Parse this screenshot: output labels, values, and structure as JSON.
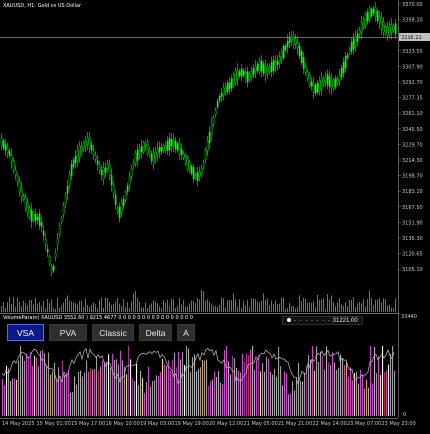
{
  "chart": {
    "title": "XAUUSD, H1:  Gold vs US Dollar",
    "price_tag": "3338.23",
    "right_axis_labels": [
      "3370.00",
      "3358.20",
      "3341.50",
      "3323.55",
      "3307.90",
      "3292.70",
      "3277.35",
      "3261.10",
      "3245.50",
      "3229.70",
      "3214.30",
      "3198.70",
      "3183.10",
      "3167.50",
      "3151.90",
      "3136.30",
      "3120.65",
      "3105.10"
    ],
    "bottom_axis_labels": [
      "14 May 2025",
      "15 May 01:00",
      "15 May 17:00",
      "16 May 10:00",
      "19 May 03:00",
      "19 May 19:00",
      "20 May 12:00",
      "21 May 05:00",
      "21 May 21:00",
      "22 May 14:00",
      "23 May 07:00",
      "23 May 23:00"
    ],
    "colors": {
      "candle": "#00ff00",
      "volume": "#00c000",
      "price_line": "#8a8a8a",
      "background": "#000000"
    }
  },
  "indicator": {
    "header": "VolumeParam( XAUUSD 3552.60 ) 9215 4677 0 0 0 0 0 0 0 0 0 0 0 0 0 0 0 0",
    "marker_label": "31221.00",
    "axis_top": "33440",
    "axis_bottom": "0",
    "buttons": [
      {
        "label": "VSA",
        "active": true
      },
      {
        "label": "PVA",
        "active": false
      },
      {
        "label": "Classic",
        "active": false
      },
      {
        "label": "Delta",
        "active": false
      },
      {
        "label": "A",
        "active": false
      }
    ]
  }
}
